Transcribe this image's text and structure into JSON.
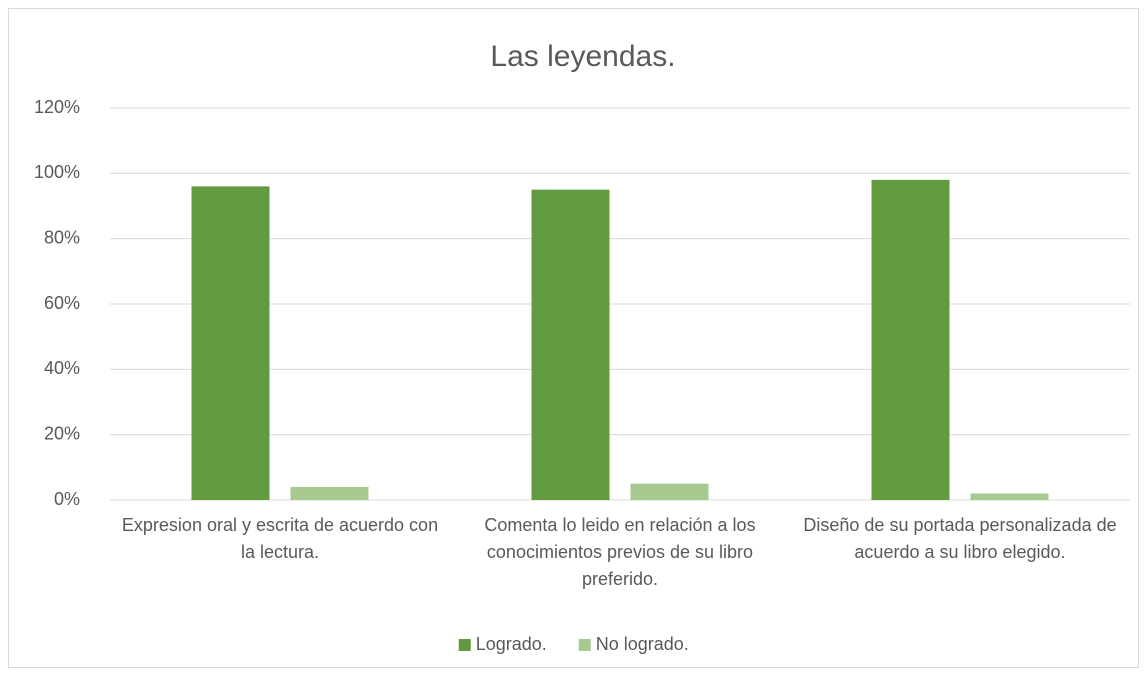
{
  "chart_data": {
    "type": "bar",
    "title": "Las leyendas.",
    "categories": [
      "Expresion oral y escrita de acuerdo con la lectura.",
      "Comenta lo leido en relación a los conocimientos previos de su libro preferido.",
      "Diseño de su portada personalizada de acuerdo a su libro elegido."
    ],
    "series": [
      {
        "name": "Logrado.",
        "color": "#629b3f",
        "values": [
          96,
          95,
          98
        ]
      },
      {
        "name": "No logrado.",
        "color": "#a6c98f",
        "values": [
          4,
          5,
          2
        ]
      }
    ],
    "ylim": [
      0,
      120
    ],
    "yticks": [
      {
        "value": 0,
        "label": "0%"
      },
      {
        "value": 20,
        "label": "20%"
      },
      {
        "value": 40,
        "label": "40%"
      },
      {
        "value": 60,
        "label": "60%"
      },
      {
        "value": 80,
        "label": "80%"
      },
      {
        "value": 100,
        "label": "100%"
      },
      {
        "value": 120,
        "label": "120%"
      }
    ],
    "grid": true,
    "legend": "bottom"
  }
}
